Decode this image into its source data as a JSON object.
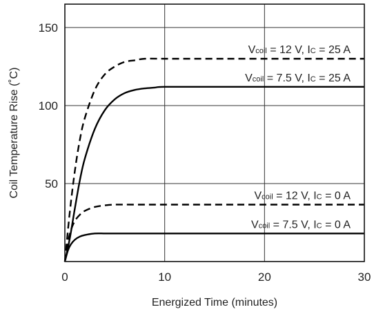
{
  "chart_data": {
    "type": "line",
    "xlabel": "Energized Time (minutes)",
    "ylabel": "Coil Temperature Rise (˚C)",
    "xlim": [
      0,
      30
    ],
    "ylim": [
      0,
      165
    ],
    "x_ticks": [
      "0",
      "10",
      "20",
      "30"
    ],
    "y_ticks": [
      "50",
      "100",
      "150"
    ],
    "x_tick_values": [
      0,
      10,
      20,
      30
    ],
    "y_tick_values": [
      50,
      100,
      150
    ],
    "grid": true,
    "series": [
      {
        "name": "Vcoil = 12 V, IC = 25 A",
        "label_parts": [
          "V",
          "coil",
          " = 12 V, I",
          "C",
          " = 25 A"
        ],
        "style": "dashed",
        "x": [
          0,
          0.5,
          1,
          1.5,
          2,
          3,
          4,
          5,
          6,
          7,
          8,
          10,
          15,
          20,
          30
        ],
        "y": [
          0,
          32,
          58,
          78,
          92,
          110,
          120,
          125,
          128,
          129,
          130,
          130,
          130,
          130,
          130
        ]
      },
      {
        "name": "Vcoil = 7.5 V, IC = 25 A",
        "label_parts": [
          "V",
          "coil",
          " = 7.5 V, I",
          "C",
          " = 25 A"
        ],
        "style": "solid",
        "x": [
          0,
          0.5,
          1,
          1.5,
          2,
          3,
          4,
          5,
          6,
          7,
          8,
          9,
          10,
          15,
          20,
          30
        ],
        "y": [
          0,
          15,
          34,
          52,
          66,
          85,
          97,
          104,
          108,
          110,
          111,
          111.5,
          112,
          112,
          112,
          112
        ]
      },
      {
        "name": "Vcoil = 12 V, IC = 0 A",
        "label_parts": [
          "V",
          "coil",
          " = 12 V, I",
          "C",
          " = 0 A"
        ],
        "style": "dashed",
        "x": [
          0,
          0.3,
          0.6,
          1,
          1.5,
          2,
          3,
          4,
          5,
          7,
          10,
          20,
          30
        ],
        "y": [
          0,
          12,
          20,
          26,
          30,
          32.5,
          35,
          36,
          36.5,
          36.5,
          36.5,
          36.5,
          36.5
        ]
      },
      {
        "name": "Vcoil = 7.5 V, IC = 0 A",
        "label_parts": [
          "V",
          "coil",
          " = 7.5 V, I",
          "C",
          " = 0 A"
        ],
        "style": "solid",
        "x": [
          0,
          0.3,
          0.6,
          1,
          1.5,
          2,
          3,
          4,
          5,
          10,
          20,
          30
        ],
        "y": [
          0,
          7,
          11,
          14,
          16,
          17,
          18,
          18,
          18,
          18,
          18,
          18
        ]
      }
    ]
  }
}
